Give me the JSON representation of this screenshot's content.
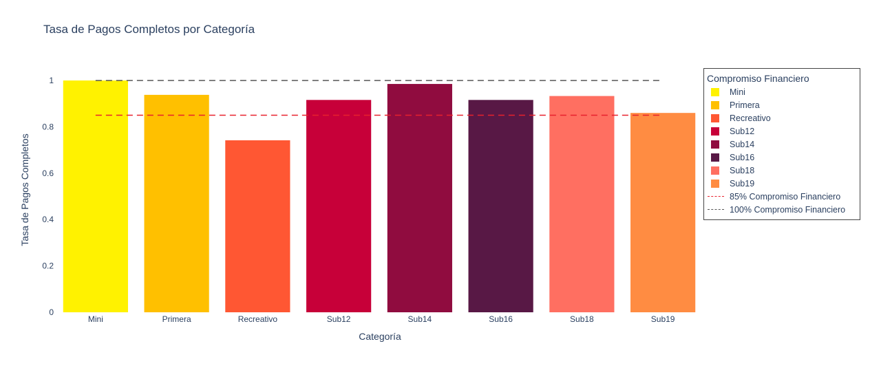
{
  "chart_data": {
    "type": "bar",
    "title": "Tasa de Pagos Completos por Categoría",
    "xlabel": "Categoría",
    "ylabel": "Tasa de Pagos Completos",
    "categories": [
      "Mini",
      "Primera",
      "Recreativo",
      "Sub12",
      "Sub14",
      "Sub16",
      "Sub18",
      "Sub19"
    ],
    "values": [
      1.0,
      0.938,
      0.742,
      0.916,
      0.985,
      0.916,
      0.933,
      0.86
    ],
    "colors": [
      "#fff200",
      "#ffc000",
      "#ff5733",
      "#c70039",
      "#900c3f",
      "#581845",
      "#ff6f61",
      "#ff8c42"
    ],
    "ylim": [
      0,
      1.0
    ],
    "yticks": [
      "0",
      "0.2",
      "0.4",
      "0.6",
      "0.8",
      "1"
    ],
    "reference_lines": [
      {
        "name": "85% Compromiso Financiero",
        "y": 0.85,
        "color": "#e8212d",
        "style": "dashed"
      },
      {
        "name": "100% Compromiso Financiero",
        "y": 1.0,
        "color": "#555555",
        "style": "dashed"
      }
    ],
    "legend": {
      "title": "Compromiso Financiero",
      "placement": "top-right",
      "entries": [
        "Mini",
        "Primera",
        "Recreativo",
        "Sub12",
        "Sub14",
        "Sub16",
        "Sub18",
        "Sub19",
        "85% Compromiso Financiero",
        "100% Compromiso Financiero"
      ]
    },
    "grid": false
  }
}
